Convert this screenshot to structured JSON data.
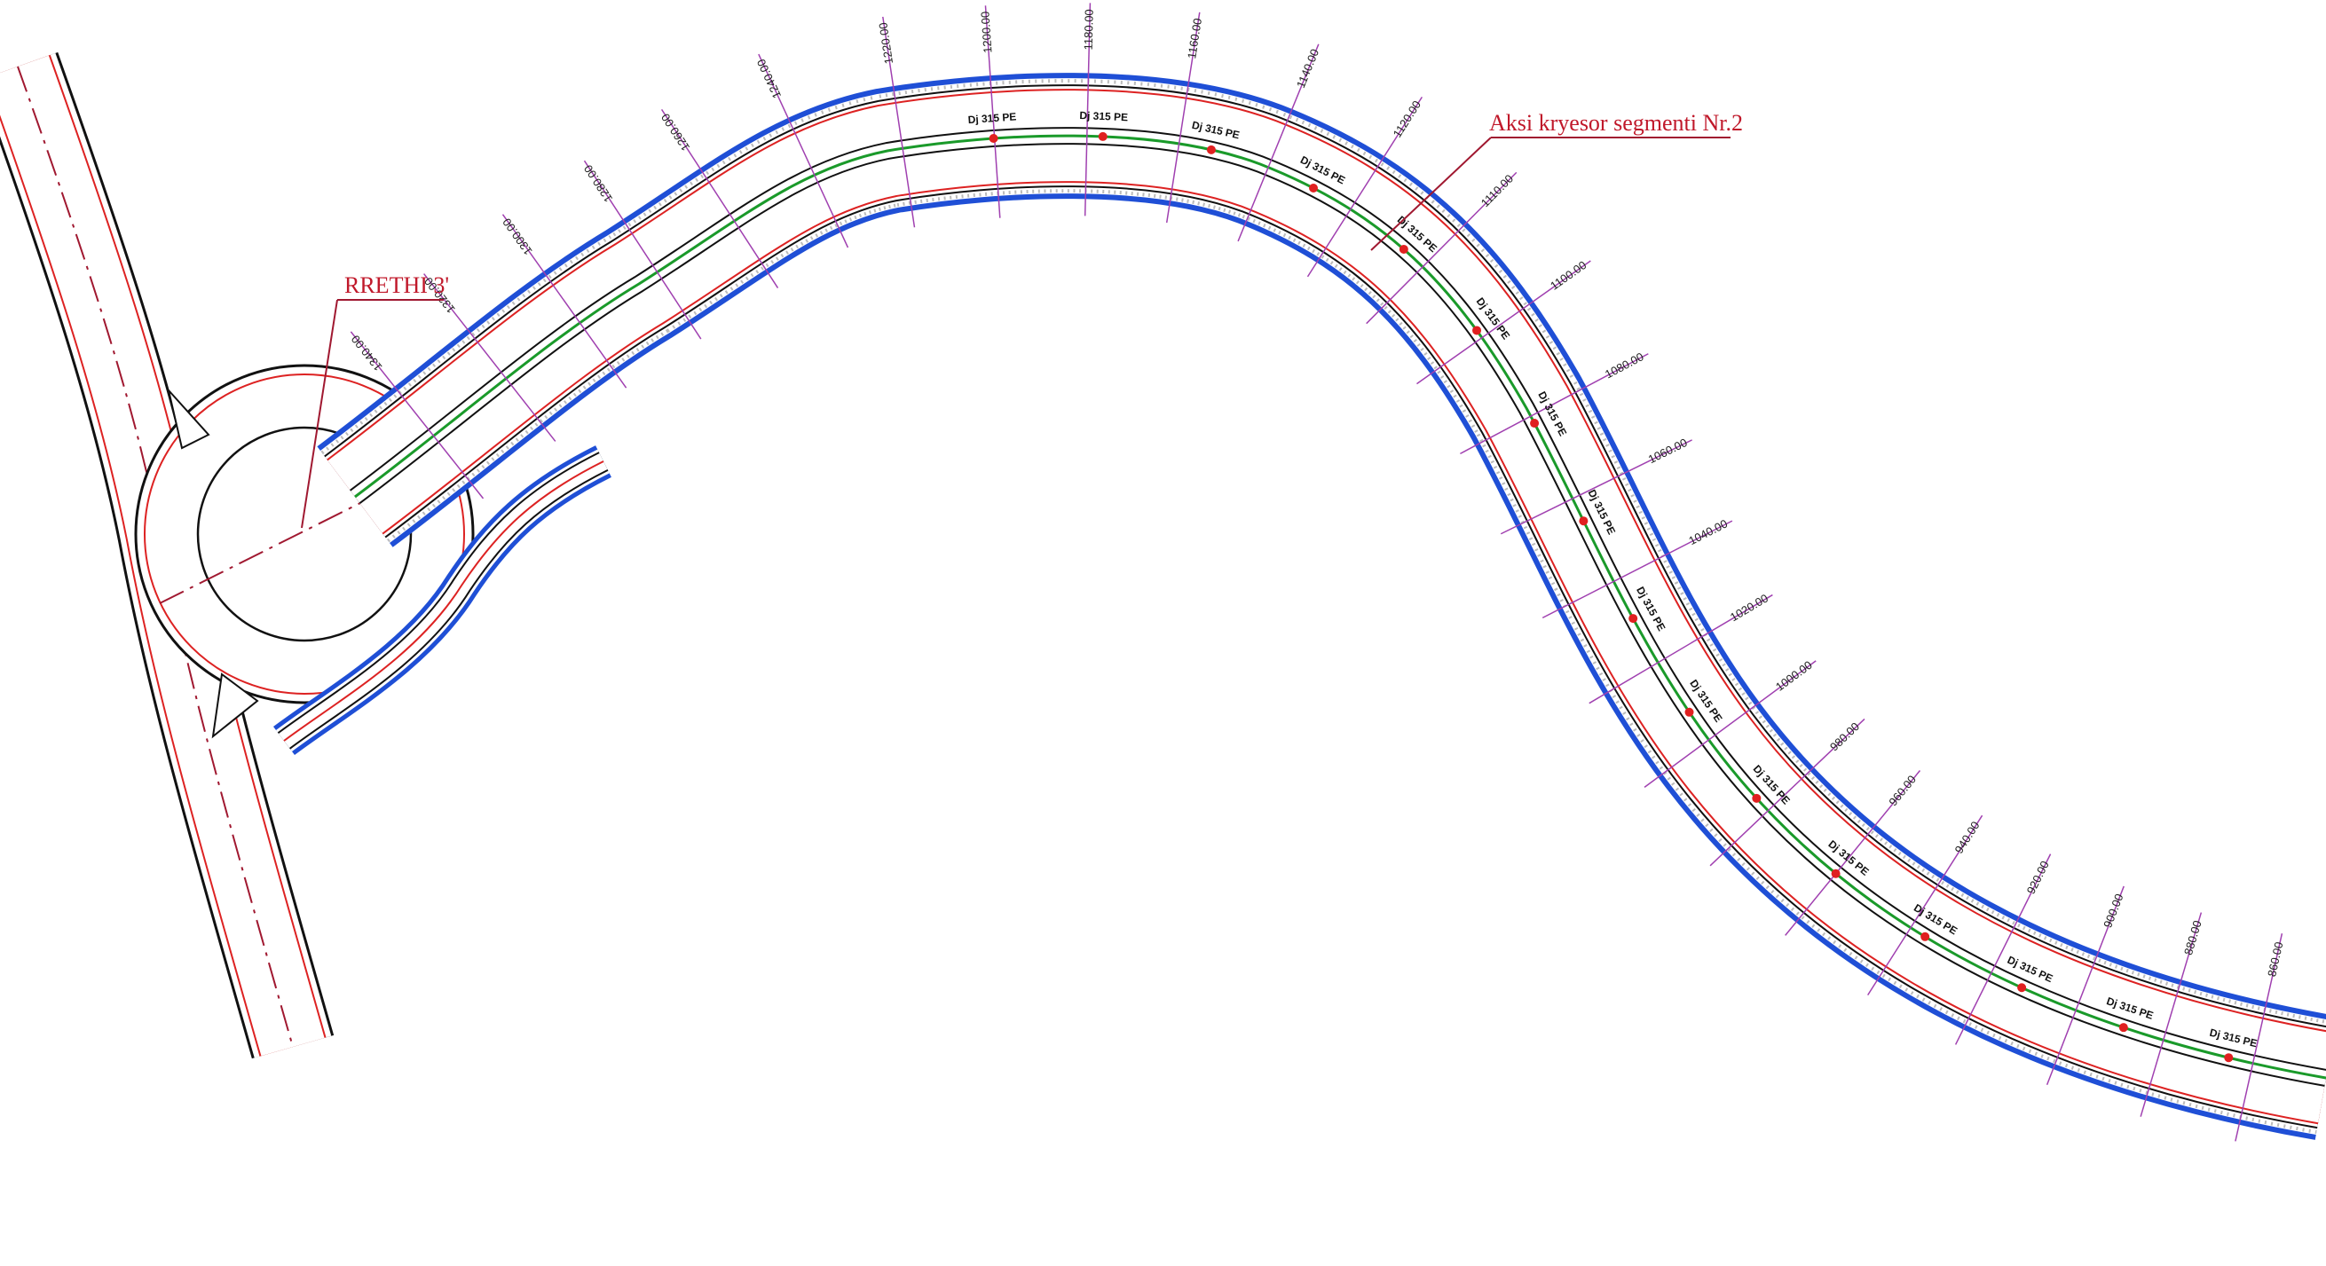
{
  "annotations": {
    "roundabout": "RRETHI 3'",
    "axis": "Aksi kryesor segmenti Nr.2"
  },
  "stations": [
    "1340.00",
    "1320.00",
    "1300.00",
    "1280.00",
    "1260.00",
    "1240.00",
    "1220.00",
    "1200.00",
    "1180.00",
    "1160.00",
    "1140.00",
    "1120.00",
    "1110.00",
    "1100.00",
    "1080.00",
    "1060.00",
    "1040.00",
    "1020.00",
    "1000.00",
    "980.00",
    "960.00",
    "940.00",
    "920.00",
    "900.00",
    "880.00",
    "860.00"
  ],
  "pipe_labels": [
    "Dj 315 PE",
    "Dj 315 PE",
    "Dj 315 PE",
    "Dj 315 PE",
    "Dj 315 PE",
    "Dj 315 PE",
    "Dj 315 PE",
    "Dj 315 PE",
    "Dj 315 PE",
    "Dj 315 PE",
    "Dj 315 PE",
    "Dj 315 PE",
    "Dj 315 PE",
    "Dj 315 PE",
    "Dj 315 PE",
    "Dj 315 PE"
  ]
}
